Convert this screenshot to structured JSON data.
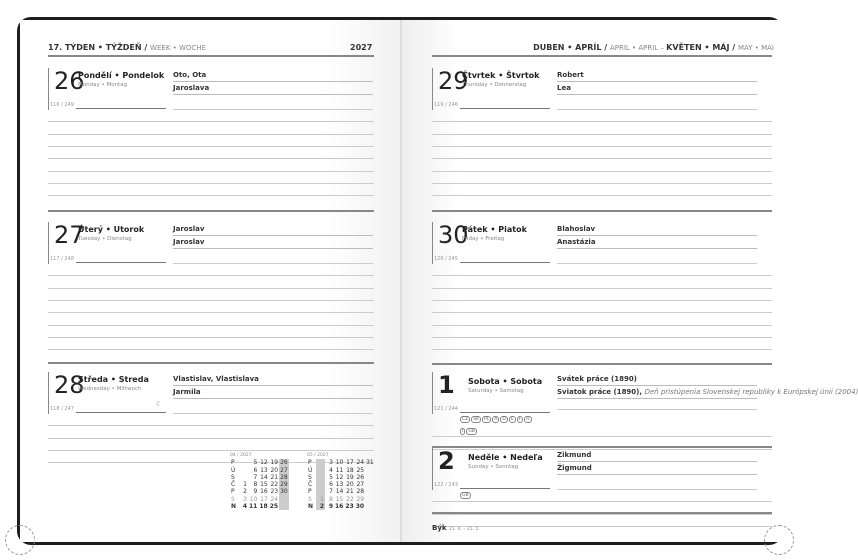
{
  "left_header": {
    "week": "17. TÝDEN • TÝŽDEŇ / ",
    "week_en": "WEEK • WOCHE",
    "year": "2027"
  },
  "right_header": {
    "month1": "DUBEN • APRÍL / ",
    "month1_en": "APRIL • APRIL – ",
    "month2": "KVĚTEN • MÁJ / ",
    "month2_en": "MAY • MAI"
  },
  "days": [
    {
      "num": "26",
      "name": "Pondělí • Pondelok",
      "sub": "Monday • Montag",
      "count": "116 / 249",
      "names": [
        "Oto, Ota",
        "Jaroslava"
      ]
    },
    {
      "num": "27",
      "name": "Úterý • Utorok",
      "sub": "Tuesday • Dienstag",
      "count": "117 / 248",
      "names": [
        "Jaroslav",
        "Jaroslav"
      ]
    },
    {
      "num": "28",
      "name": "Středa • Streda",
      "sub": "Wednesday • Mittwoch",
      "count": "118 / 247",
      "names": [
        "Vlastislav, Vlastislava",
        "Jarmila"
      ],
      "moon": "☾"
    },
    {
      "num": "29",
      "name": "Čtvrtek • Štvrtok",
      "sub": "Thursday • Donnerstag",
      "count": "119 / 246",
      "names": [
        "Robert",
        "Lea"
      ]
    },
    {
      "num": "30",
      "name": "Pátek • Piatok",
      "sub": "Friday • Freitag",
      "count": "120 / 245",
      "names": [
        "Blahoslav",
        "Anastázia"
      ]
    },
    {
      "num": "1",
      "name": "Sobota • Sobota",
      "sub": "Saturday • Samstag",
      "count": "121 / 244",
      "names": [
        "Svátek práce (1890)",
        "Sviatok práce (1890),"
      ],
      "note": "Deň pristúpenia Slovenskej republiky k Európskej únii (2004)",
      "badges": [
        "CZ",
        "SK",
        "PL",
        "A",
        "D",
        "E",
        "F",
        "H"
      ],
      "badges2": [
        "I",
        "GB"
      ]
    },
    {
      "num": "2",
      "name": "Neděle • Nedeľa",
      "sub": "Sunday • Sonntag",
      "count": "122 / 243",
      "names": [
        "Zikmund",
        "Žigmund"
      ],
      "badges": [
        "GB"
      ]
    }
  ],
  "calendars": [
    {
      "title": "04 / 2027",
      "rows": [
        [
          "P",
          "",
          "5",
          "12",
          "19",
          "26"
        ],
        [
          "Ú",
          "",
          "6",
          "13",
          "20",
          "27"
        ],
        [
          "S",
          "",
          "7",
          "14",
          "21",
          "28"
        ],
        [
          "Č",
          "1",
          "8",
          "15",
          "22",
          "29"
        ],
        [
          "P",
          "2",
          "9",
          "16",
          "23",
          "30"
        ],
        [
          "S",
          "3",
          "10",
          "17",
          "24",
          ""
        ],
        [
          "N",
          "4",
          "11",
          "18",
          "25",
          ""
        ]
      ]
    },
    {
      "title": "05 / 2027",
      "rows": [
        [
          "P",
          "",
          "3",
          "10",
          "17",
          "24",
          "31"
        ],
        [
          "Ú",
          "",
          "4",
          "11",
          "18",
          "25",
          ""
        ],
        [
          "S",
          "",
          "5",
          "12",
          "19",
          "26",
          ""
        ],
        [
          "Č",
          "",
          "6",
          "13",
          "20",
          "27",
          ""
        ],
        [
          "P",
          "",
          "7",
          "14",
          "21",
          "28",
          ""
        ],
        [
          "S",
          "1",
          "8",
          "15",
          "22",
          "29",
          ""
        ],
        [
          "N",
          "2",
          "9",
          "16",
          "23",
          "30",
          ""
        ]
      ]
    }
  ],
  "footer": {
    "sign": "Býk",
    "dates": "21. 4. – 21. 5."
  }
}
